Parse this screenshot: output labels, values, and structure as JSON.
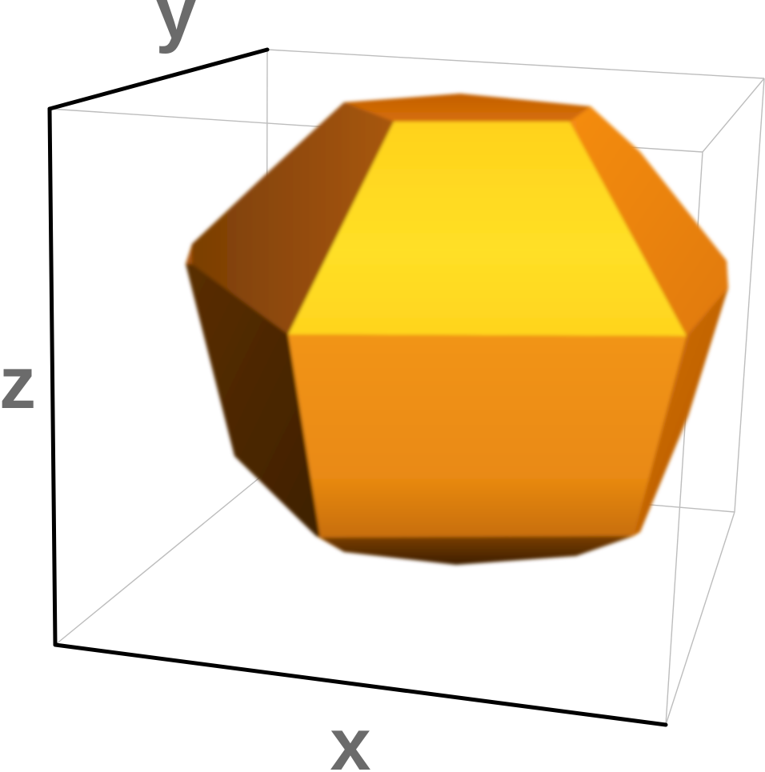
{
  "axes": {
    "x_label": "x",
    "y_label": "y",
    "z_label": "z"
  },
  "colors": {
    "background": "#ffffff",
    "box_back_edges": "#bdbdbd",
    "box_front_edges": "#000000",
    "axis_label": "#6b6b6b",
    "solid_highlight": "#ffe026",
    "solid_base": "#f0900f",
    "solid_shadow": "#4a2600"
  },
  "solid": {
    "description_icon": "rounded-polyhedron-icon"
  }
}
